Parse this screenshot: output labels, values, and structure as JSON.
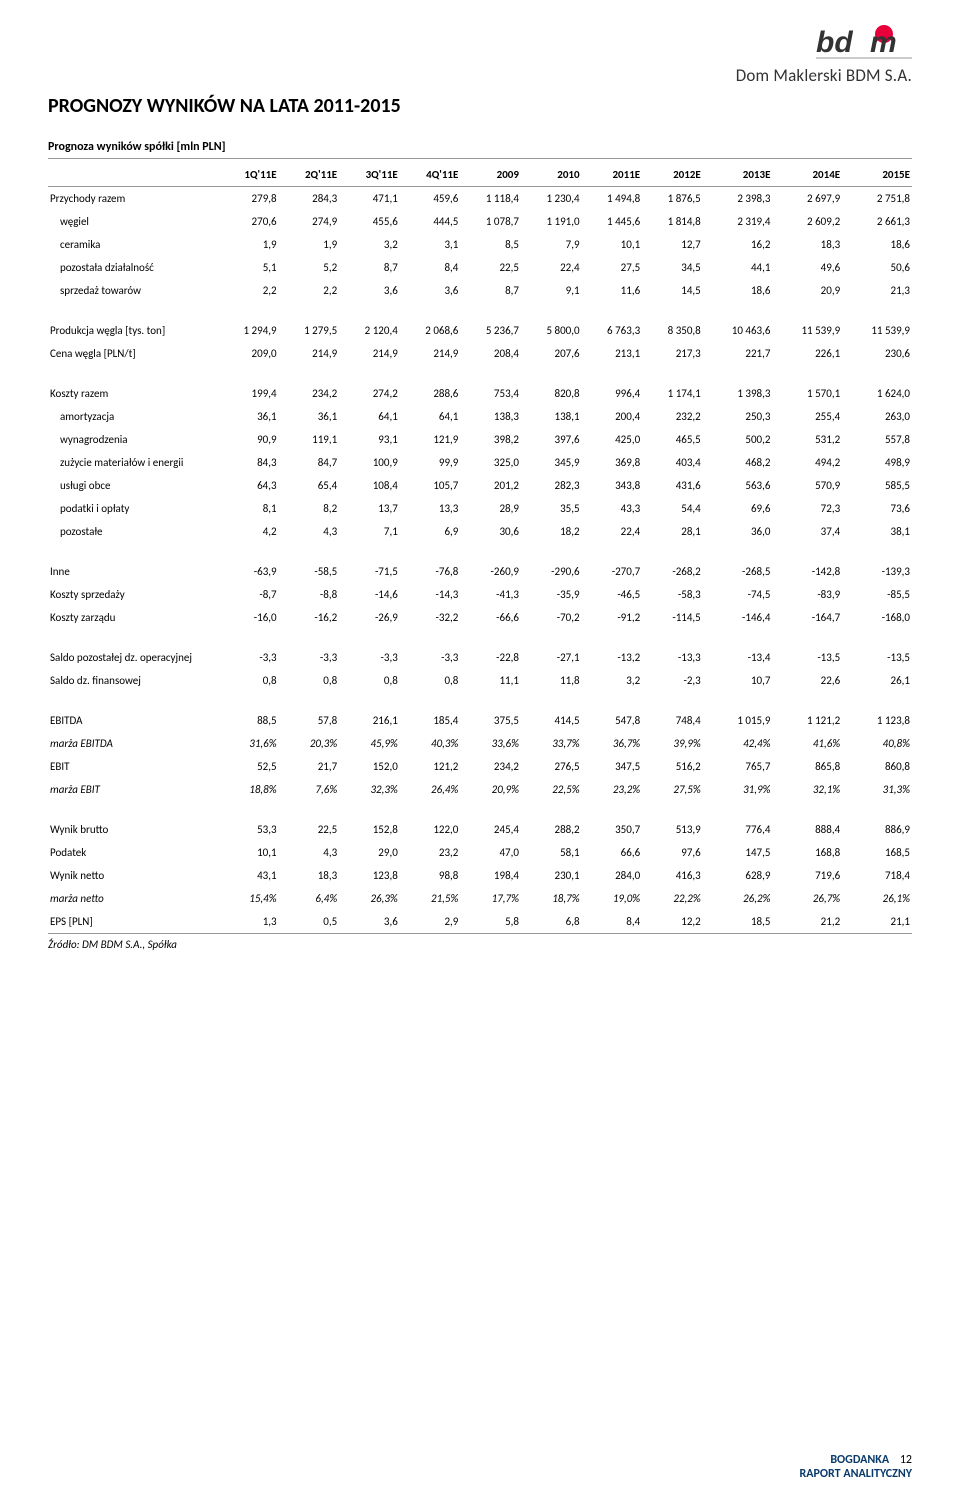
{
  "logo": {
    "text": "bdm",
    "sub": "Dom Maklerski BDM S.A.",
    "text_color": "#333333",
    "accent_color": "#e7003a"
  },
  "title": "PROGNOZY WYNIKÓW NA LATA 2011-2015",
  "subtitle": "Prognoza wyników spółki [mln PLN]",
  "columns": [
    "",
    "1Q'11E",
    "2Q'11E",
    "3Q'11E",
    "4Q'11E",
    "2009",
    "2010",
    "2011E",
    "2012E",
    "2013E",
    "2014E",
    "2015E"
  ],
  "sections": [
    {
      "rows": [
        {
          "label": "Przychody razem",
          "v": [
            "279,8",
            "284,3",
            "471,1",
            "459,6",
            "1 118,4",
            "1 230,4",
            "1 494,8",
            "1 876,5",
            "2 398,3",
            "2 697,9",
            "2 751,8"
          ]
        },
        {
          "label": "węgiel",
          "indent": true,
          "v": [
            "270,6",
            "274,9",
            "455,6",
            "444,5",
            "1 078,7",
            "1 191,0",
            "1 445,6",
            "1 814,8",
            "2 319,4",
            "2 609,2",
            "2 661,3"
          ]
        },
        {
          "label": "ceramika",
          "indent": true,
          "v": [
            "1,9",
            "1,9",
            "3,2",
            "3,1",
            "8,5",
            "7,9",
            "10,1",
            "12,7",
            "16,2",
            "18,3",
            "18,6"
          ]
        },
        {
          "label": "pozostała działalność",
          "indent": true,
          "v": [
            "5,1",
            "5,2",
            "8,7",
            "8,4",
            "22,5",
            "22,4",
            "27,5",
            "34,5",
            "44,1",
            "49,6",
            "50,6"
          ]
        },
        {
          "label": "sprzedaż towarów",
          "indent": true,
          "v": [
            "2,2",
            "2,2",
            "3,6",
            "3,6",
            "8,7",
            "9,1",
            "11,6",
            "14,5",
            "18,6",
            "20,9",
            "21,3"
          ]
        }
      ]
    },
    {
      "rows": [
        {
          "label": "Produkcja węgla [tys. ton]",
          "v": [
            "1 294,9",
            "1 279,5",
            "2 120,4",
            "2 068,6",
            "5 236,7",
            "5 800,0",
            "6 763,3",
            "8 350,8",
            "10 463,6",
            "11 539,9",
            "11 539,9"
          ]
        },
        {
          "label": "Cena węgla [PLN/t]",
          "v": [
            "209,0",
            "214,9",
            "214,9",
            "214,9",
            "208,4",
            "207,6",
            "213,1",
            "217,3",
            "221,7",
            "226,1",
            "230,6"
          ]
        }
      ]
    },
    {
      "rows": [
        {
          "label": "Koszty razem",
          "v": [
            "199,4",
            "234,2",
            "274,2",
            "288,6",
            "753,4",
            "820,8",
            "996,4",
            "1 174,1",
            "1 398,3",
            "1 570,1",
            "1 624,0"
          ]
        },
        {
          "label": "amortyzacja",
          "indent": true,
          "v": [
            "36,1",
            "36,1",
            "64,1",
            "64,1",
            "138,3",
            "138,1",
            "200,4",
            "232,2",
            "250,3",
            "255,4",
            "263,0"
          ]
        },
        {
          "label": "wynagrodzenia",
          "indent": true,
          "v": [
            "90,9",
            "119,1",
            "93,1",
            "121,9",
            "398,2",
            "397,6",
            "425,0",
            "465,5",
            "500,2",
            "531,2",
            "557,8"
          ]
        },
        {
          "label": "zużycie materiałów i energii",
          "indent": true,
          "v": [
            "84,3",
            "84,7",
            "100,9",
            "99,9",
            "325,0",
            "345,9",
            "369,8",
            "403,4",
            "468,2",
            "494,2",
            "498,9"
          ]
        },
        {
          "label": "usługi obce",
          "indent": true,
          "v": [
            "64,3",
            "65,4",
            "108,4",
            "105,7",
            "201,2",
            "282,3",
            "343,8",
            "431,6",
            "563,6",
            "570,9",
            "585,5"
          ]
        },
        {
          "label": "podatki i opłaty",
          "indent": true,
          "v": [
            "8,1",
            "8,2",
            "13,7",
            "13,3",
            "28,9",
            "35,5",
            "43,3",
            "54,4",
            "69,6",
            "72,3",
            "73,6"
          ]
        },
        {
          "label": "pozostałe",
          "indent": true,
          "v": [
            "4,2",
            "4,3",
            "7,1",
            "6,9",
            "30,6",
            "18,2",
            "22,4",
            "28,1",
            "36,0",
            "37,4",
            "38,1"
          ]
        }
      ]
    },
    {
      "rows": [
        {
          "label": "Inne",
          "v": [
            "-63,9",
            "-58,5",
            "-71,5",
            "-76,8",
            "-260,9",
            "-290,6",
            "-270,7",
            "-268,2",
            "-268,5",
            "-142,8",
            "-139,3"
          ]
        },
        {
          "label": "Koszty sprzedaży",
          "v": [
            "-8,7",
            "-8,8",
            "-14,6",
            "-14,3",
            "-41,3",
            "-35,9",
            "-46,5",
            "-58,3",
            "-74,5",
            "-83,9",
            "-85,5"
          ]
        },
        {
          "label": "Koszty zarządu",
          "v": [
            "-16,0",
            "-16,2",
            "-26,9",
            "-32,2",
            "-66,6",
            "-70,2",
            "-91,2",
            "-114,5",
            "-146,4",
            "-164,7",
            "-168,0"
          ]
        }
      ]
    },
    {
      "rows": [
        {
          "label": "Saldo pozostałej dz. operacyjnej",
          "v": [
            "-3,3",
            "-3,3",
            "-3,3",
            "-3,3",
            "-22,8",
            "-27,1",
            "-13,2",
            "-13,3",
            "-13,4",
            "-13,5",
            "-13,5"
          ]
        },
        {
          "label": "Saldo dz. finansowej",
          "v": [
            "0,8",
            "0,8",
            "0,8",
            "0,8",
            "11,1",
            "11,8",
            "3,2",
            "-2,3",
            "10,7",
            "22,6",
            "26,1"
          ]
        }
      ]
    },
    {
      "rows": [
        {
          "label": "EBITDA",
          "v": [
            "88,5",
            "57,8",
            "216,1",
            "185,4",
            "375,5",
            "414,5",
            "547,8",
            "748,4",
            "1 015,9",
            "1 121,2",
            "1 123,8"
          ]
        },
        {
          "label": "marża EBITDA",
          "italic": true,
          "v": [
            "31,6%",
            "20,3%",
            "45,9%",
            "40,3%",
            "33,6%",
            "33,7%",
            "36,7%",
            "39,9%",
            "42,4%",
            "41,6%",
            "40,8%"
          ]
        },
        {
          "label": "EBIT",
          "v": [
            "52,5",
            "21,7",
            "152,0",
            "121,2",
            "234,2",
            "276,5",
            "347,5",
            "516,2",
            "765,7",
            "865,8",
            "860,8"
          ]
        },
        {
          "label": "marża EBIT",
          "italic": true,
          "v": [
            "18,8%",
            "7,6%",
            "32,3%",
            "26,4%",
            "20,9%",
            "22,5%",
            "23,2%",
            "27,5%",
            "31,9%",
            "32,1%",
            "31,3%"
          ]
        }
      ]
    },
    {
      "rows": [
        {
          "label": "Wynik brutto",
          "v": [
            "53,3",
            "22,5",
            "152,8",
            "122,0",
            "245,4",
            "288,2",
            "350,7",
            "513,9",
            "776,4",
            "888,4",
            "886,9"
          ]
        },
        {
          "label": "Podatek",
          "v": [
            "10,1",
            "4,3",
            "29,0",
            "23,2",
            "47,0",
            "58,1",
            "66,6",
            "97,6",
            "147,5",
            "168,8",
            "168,5"
          ]
        },
        {
          "label": "Wynik netto",
          "v": [
            "43,1",
            "18,3",
            "123,8",
            "98,8",
            "198,4",
            "230,1",
            "284,0",
            "416,3",
            "628,9",
            "719,6",
            "718,4"
          ]
        },
        {
          "label": "marża netto",
          "italic": true,
          "v": [
            "15,4%",
            "6,4%",
            "26,3%",
            "21,5%",
            "17,7%",
            "18,7%",
            "19,0%",
            "22,2%",
            "26,2%",
            "26,7%",
            "26,1%"
          ]
        },
        {
          "label": "EPS [PLN]",
          "hline": true,
          "v": [
            "1,3",
            "0,5",
            "3,6",
            "2,9",
            "5,8",
            "6,8",
            "8,4",
            "12,2",
            "18,5",
            "21,2",
            "21,1"
          ]
        }
      ]
    }
  ],
  "source": "Źródło: DM BDM S.A., Spółka",
  "footer": {
    "line1": "BOGDANKA",
    "line2": "RAPORT ANALITYCZNY",
    "page": "12",
    "color": "#0a3a6a"
  }
}
